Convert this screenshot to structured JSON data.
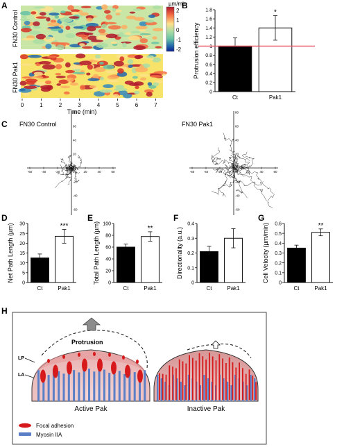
{
  "panel_letters": {
    "A": "A",
    "B": "B",
    "C": "C",
    "D": "D",
    "E": "E",
    "F": "F",
    "G": "G",
    "H": "H"
  },
  "panelA": {
    "row_labels": [
      "FN30 Control",
      "FN30 Pak1"
    ],
    "x_axis_label": "Time (min)",
    "x_ticks": [
      "0",
      "1",
      "2",
      "3",
      "4",
      "5",
      "6",
      "7"
    ],
    "colorbar_unit": "µm/min",
    "colorbar_ticks": [
      "2",
      "1",
      "0",
      "-1",
      "-2"
    ],
    "colorbar_colors": [
      "#b2182b",
      "#f46d43",
      "#fee08b",
      "#abdda4",
      "#66c2a5",
      "#2166ac",
      "#0b1f8f"
    ]
  },
  "panelC": {
    "titles": [
      "FN30 Control",
      "FN30 Pak1"
    ],
    "x_ticks": [
      "-60",
      "-40",
      "-20",
      "20",
      "40",
      "60"
    ],
    "y_ticks": [
      "80",
      "60",
      "40",
      "20",
      "-20",
      "-40",
      "-60"
    ],
    "origin_label": "0"
  },
  "panelH": {
    "labels": {
      "protrusion": "Protrusion",
      "lp": "LP",
      "la": "LA",
      "active": "Active Pak",
      "inactive": "Inactive Pak"
    },
    "legend": [
      {
        "label": "Focal adhesion",
        "color": "#d7191c",
        "icon": "focal-adhesion-ellipse"
      },
      {
        "label": "Myosin IIA",
        "color": "#5b7fc7",
        "icon": "myosin-bar"
      }
    ],
    "arrow_icons": [
      "large-up-arrow-icon",
      "small-up-arrow-icon"
    ]
  },
  "chart_data": [
    {
      "panel": "B",
      "type": "bar",
      "categories": [
        "Ct",
        "Pak1"
      ],
      "values": [
        1.0,
        1.4
      ],
      "errors": [
        0.18,
        0.27
      ],
      "colors": [
        "#000000",
        "#ffffff"
      ],
      "significance": [
        "",
        "*"
      ],
      "ylabel": "Protrusion efficiency",
      "ylim": [
        0,
        1.8
      ],
      "yticks": [
        0,
        0.2,
        0.4,
        0.6,
        0.8,
        1,
        1.2,
        1.4,
        1.6,
        1.8
      ],
      "reference_line": {
        "y": 1,
        "color": "#e8546a"
      }
    },
    {
      "panel": "D",
      "type": "bar",
      "categories": [
        "Ct",
        "Pak1"
      ],
      "values": [
        12.5,
        23.5
      ],
      "errors": [
        2.0,
        3.5
      ],
      "colors": [
        "#000000",
        "#ffffff"
      ],
      "significance": [
        "",
        "***"
      ],
      "ylabel": "Net Path Length (µm)",
      "ylim": [
        0,
        30
      ],
      "yticks": [
        0,
        5,
        10,
        15,
        20,
        25,
        30
      ]
    },
    {
      "panel": "E",
      "type": "bar",
      "categories": [
        "Ct",
        "Pak1"
      ],
      "values": [
        60,
        78
      ],
      "errors": [
        5,
        8
      ],
      "colors": [
        "#000000",
        "#ffffff"
      ],
      "significance": [
        "",
        "**"
      ],
      "ylabel": "Total Path Length (µm)",
      "ylim": [
        0,
        100
      ],
      "yticks": [
        0,
        20,
        40,
        60,
        80,
        100
      ]
    },
    {
      "panel": "F",
      "type": "bar",
      "categories": [
        "Ct",
        "Pak1"
      ],
      "values": [
        0.21,
        0.3
      ],
      "errors": [
        0.035,
        0.065
      ],
      "colors": [
        "#000000",
        "#ffffff"
      ],
      "significance": [
        "",
        ""
      ],
      "ylabel": "Directionality (a.u.)",
      "ylim": [
        0,
        0.4
      ],
      "yticks": [
        0,
        0.1,
        0.2,
        0.3,
        0.4
      ]
    },
    {
      "panel": "G",
      "type": "bar",
      "categories": [
        "Ct",
        "Pak1"
      ],
      "values": [
        0.35,
        0.51
      ],
      "errors": [
        0.03,
        0.035
      ],
      "colors": [
        "#000000",
        "#ffffff"
      ],
      "significance": [
        "",
        "**"
      ],
      "ylabel": "Cell Velocity (µm/min)",
      "ylim": [
        0,
        0.6
      ],
      "yticks": [
        0,
        0.1,
        0.2,
        0.3,
        0.4,
        0.5,
        0.6
      ]
    }
  ]
}
